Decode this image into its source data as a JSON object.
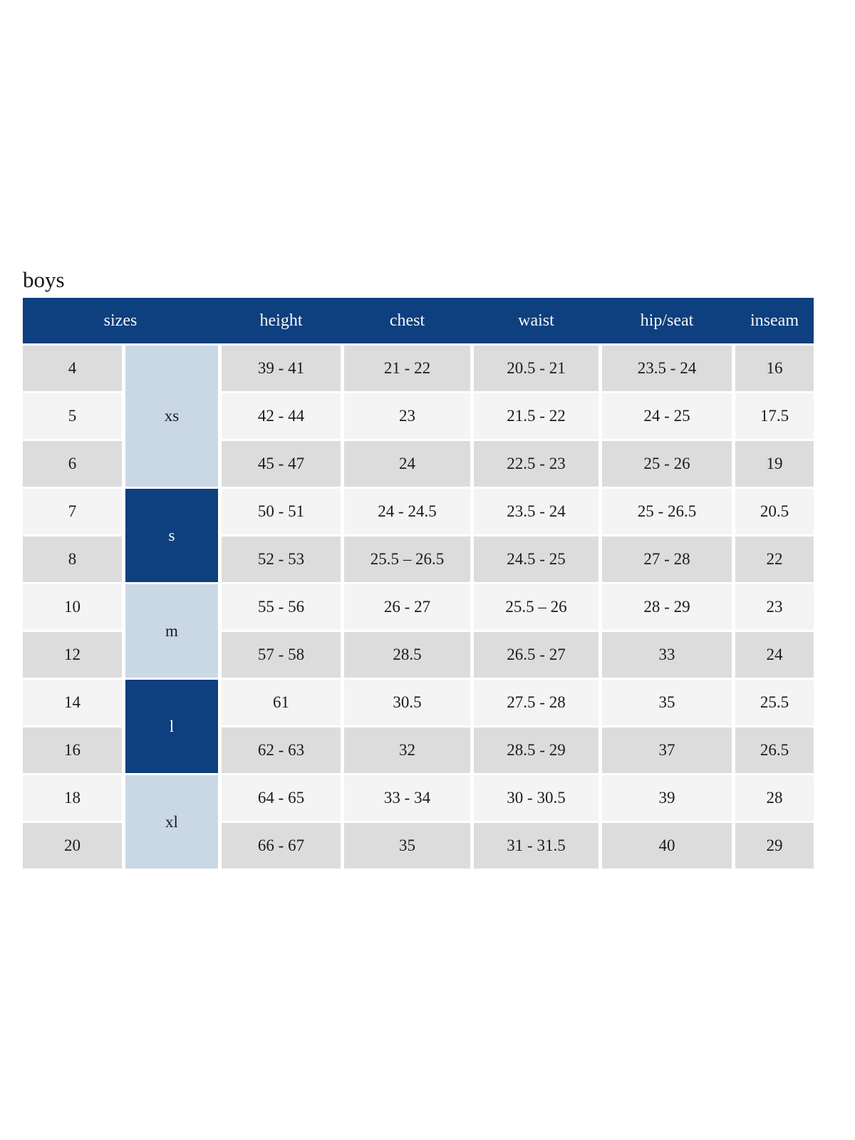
{
  "page": {
    "title": "boys"
  },
  "colors": {
    "header_navy": "#0e3f7e",
    "group_light_blue": "#cad7e5",
    "row_gray": "#dcdcdc",
    "row_light": "#f4f4f4",
    "header_text": "#f7f7f9",
    "cell_text": "#1b1b1b"
  },
  "table": {
    "headers": [
      "sizes",
      "height",
      "chest",
      "waist",
      "hip/seat",
      "inseam"
    ],
    "groups": [
      {
        "label": "xs",
        "sizes": [
          "4",
          "5",
          "6"
        ]
      },
      {
        "label": "s",
        "sizes": [
          "7",
          "8"
        ]
      },
      {
        "label": "m",
        "sizes": [
          "10",
          "12"
        ]
      },
      {
        "label": "l",
        "sizes": [
          "14",
          "16"
        ]
      },
      {
        "label": "xl",
        "sizes": [
          "18",
          "20"
        ]
      }
    ],
    "rows": [
      {
        "size": "4",
        "height": "39 - 41",
        "chest": "21 - 22",
        "waist": "20.5 - 21",
        "hip_seat": "23.5 - 24",
        "inseam": "16"
      },
      {
        "size": "5",
        "height": "42 - 44",
        "chest": "23",
        "waist": "21.5 - 22",
        "hip_seat": "24 - 25",
        "inseam": "17.5"
      },
      {
        "size": "6",
        "height": "45 - 47",
        "chest": "24",
        "waist": "22.5 - 23",
        "hip_seat": "25 - 26",
        "inseam": "19"
      },
      {
        "size": "7",
        "height": "50 - 51",
        "chest": "24 - 24.5",
        "waist": "23.5 - 24",
        "hip_seat": "25 - 26.5",
        "inseam": "20.5"
      },
      {
        "size": "8",
        "height": "52 - 53",
        "chest": "25.5 – 26.5",
        "waist": "24.5 - 25",
        "hip_seat": "27 - 28",
        "inseam": "22"
      },
      {
        "size": "10",
        "height": "55 - 56",
        "chest": "26 - 27",
        "waist": "25.5 – 26",
        "hip_seat": "28 - 29",
        "inseam": "23"
      },
      {
        "size": "12",
        "height": "57 - 58",
        "chest": "28.5",
        "waist": "26.5 - 27",
        "hip_seat": "33",
        "inseam": "24"
      },
      {
        "size": "14",
        "height": "61",
        "chest": "30.5",
        "waist": "27.5 - 28",
        "hip_seat": "35",
        "inseam": "25.5"
      },
      {
        "size": "16",
        "height": "62 - 63",
        "chest": "32",
        "waist": "28.5 - 29",
        "hip_seat": "37",
        "inseam": "26.5"
      },
      {
        "size": "18",
        "height": "64 - 65",
        "chest": "33 - 34",
        "waist": "30 - 30.5",
        "hip_seat": "39",
        "inseam": "28"
      },
      {
        "size": "20",
        "height": "66 - 67",
        "chest": "35",
        "waist": "31 - 31.5",
        "hip_seat": "40",
        "inseam": "29"
      }
    ]
  }
}
